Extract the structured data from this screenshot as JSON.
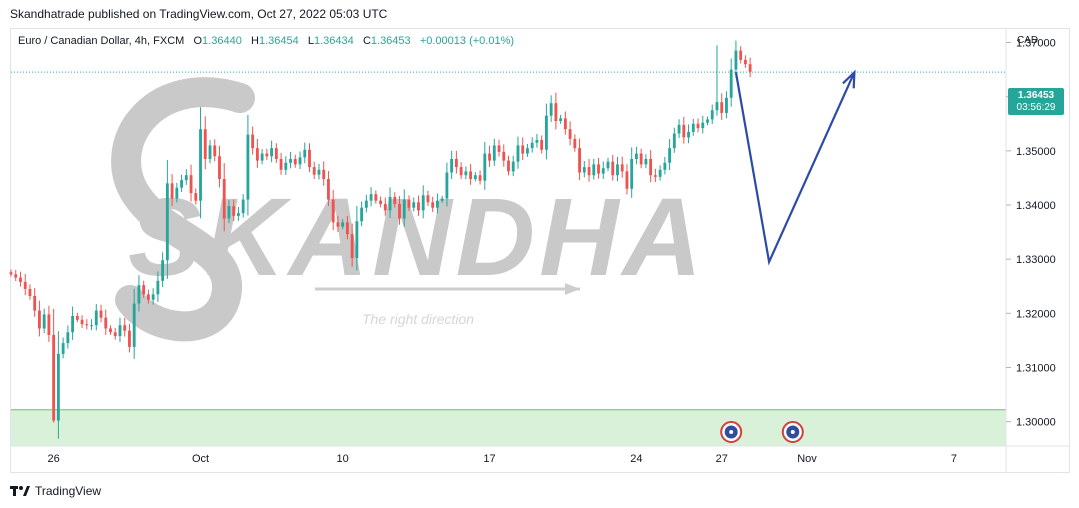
{
  "caption": "Skandhatrade published on TradingView.com, Oct 27, 2022 05:03 UTC",
  "legend": {
    "symbol": "Euro / Canadian Dollar, 4h, FXCM",
    "o_label": "O",
    "o": "1.36440",
    "h_label": "H",
    "h": "1.36454",
    "l_label": "L",
    "l": "1.36434",
    "c_label": "C",
    "c": "1.36453",
    "change": "+0.00013 (+0.01%)"
  },
  "currency": "CAD",
  "last_price": {
    "price": "1.36453",
    "countdown": "03:56:29"
  },
  "watermark": {
    "brand": "SKANDHA",
    "tagline": "The right direction"
  },
  "footer": {
    "brand": "TradingView"
  },
  "colors": {
    "up": "#26a69a",
    "down": "#ef5350",
    "zone": "#d9f0d9",
    "arrow": "#2c4aa8"
  },
  "chart_data": {
    "type": "candlestick",
    "title": "Euro / Canadian Dollar, 4h, FXCM",
    "ylim": [
      1.2955,
      1.3725
    ],
    "yticks": [
      {
        "v": 1.37,
        "label": "1.37000"
      },
      {
        "v": 1.36,
        "label": "1.36000"
      },
      {
        "v": 1.35,
        "label": "1.35000"
      },
      {
        "v": 1.34,
        "label": "1.34000"
      },
      {
        "v": 1.33,
        "label": "1.33000"
      },
      {
        "v": 1.32,
        "label": "1.32000"
      },
      {
        "v": 1.31,
        "label": "1.31000"
      },
      {
        "v": 1.3,
        "label": "1.30000"
      }
    ],
    "xlim": [
      0,
      210
    ],
    "xticks": [
      {
        "i": 9,
        "label": "26"
      },
      {
        "i": 40,
        "label": "Oct"
      },
      {
        "i": 70,
        "label": "10"
      },
      {
        "i": 101,
        "label": "17"
      },
      {
        "i": 132,
        "label": "24"
      },
      {
        "i": 150,
        "label": "27"
      },
      {
        "i": 168,
        "label": "Nov"
      },
      {
        "i": 199,
        "label": "7"
      }
    ],
    "last_price": 1.36453,
    "support_zone": [
      1.2955,
      1.3022
    ],
    "events": [
      {
        "i": 152
      },
      {
        "i": 165
      }
    ],
    "projection": [
      {
        "i": 153,
        "v": 1.3645
      },
      {
        "i": 160,
        "v": 1.3295
      },
      {
        "i": 178,
        "v": 1.3645
      }
    ],
    "close": [
      1.3272,
      1.3266,
      1.3258,
      1.3245,
      1.3232,
      1.3205,
      1.3172,
      1.3198,
      1.316,
      1.3002,
      1.3125,
      1.3145,
      1.3165,
      1.3195,
      1.3188,
      1.318,
      1.3178,
      1.3178,
      1.3205,
      1.3192,
      1.3172,
      1.3165,
      1.3158,
      1.3178,
      1.3168,
      1.3138,
      1.3218,
      1.3252,
      1.3235,
      1.3225,
      1.3235,
      1.326,
      1.3298,
      1.344,
      1.3412,
      1.3432,
      1.3446,
      1.3455,
      1.3422,
      1.3408,
      1.354,
      1.3485,
      1.351,
      1.349,
      1.3448,
      1.3375,
      1.3398,
      1.338,
      1.3385,
      1.341,
      1.353,
      1.3505,
      1.3482,
      1.3495,
      1.349,
      1.3505,
      1.3485,
      1.3465,
      1.3478,
      1.3485,
      1.3475,
      1.3488,
      1.3502,
      1.347,
      1.3456,
      1.3465,
      1.3448,
      1.341,
      1.3368,
      1.336,
      1.3368,
      1.3346,
      1.3302,
      1.337,
      1.3395,
      1.3408,
      1.342,
      1.3408,
      1.3402,
      1.339,
      1.3415,
      1.3402,
      1.3375,
      1.341,
      1.3395,
      1.3405,
      1.339,
      1.3418,
      1.3405,
      1.3395,
      1.3408,
      1.3412,
      1.346,
      1.3485,
      1.347,
      1.3455,
      1.3462,
      1.3448,
      1.3455,
      1.3445,
      1.3495,
      1.3482,
      1.351,
      1.3498,
      1.3482,
      1.3462,
      1.348,
      1.351,
      1.3495,
      1.3505,
      1.3515,
      1.352,
      1.3502,
      1.3565,
      1.3588,
      1.3555,
      1.356,
      1.354,
      1.3522,
      1.3505,
      1.346,
      1.347,
      1.3455,
      1.3475,
      1.3458,
      1.3468,
      1.348,
      1.3455,
      1.3475,
      1.3462,
      1.343,
      1.3485,
      1.3495,
      1.3475,
      1.3485,
      1.3455,
      1.3452,
      1.3465,
      1.3478,
      1.3505,
      1.3532,
      1.3548,
      1.3525,
      1.3535,
      1.355,
      1.3542,
      1.3552,
      1.3558,
      1.3575,
      1.359,
      1.357,
      1.3598,
      1.365,
      1.3685,
      1.3668,
      1.366,
      1.3646
    ]
  }
}
